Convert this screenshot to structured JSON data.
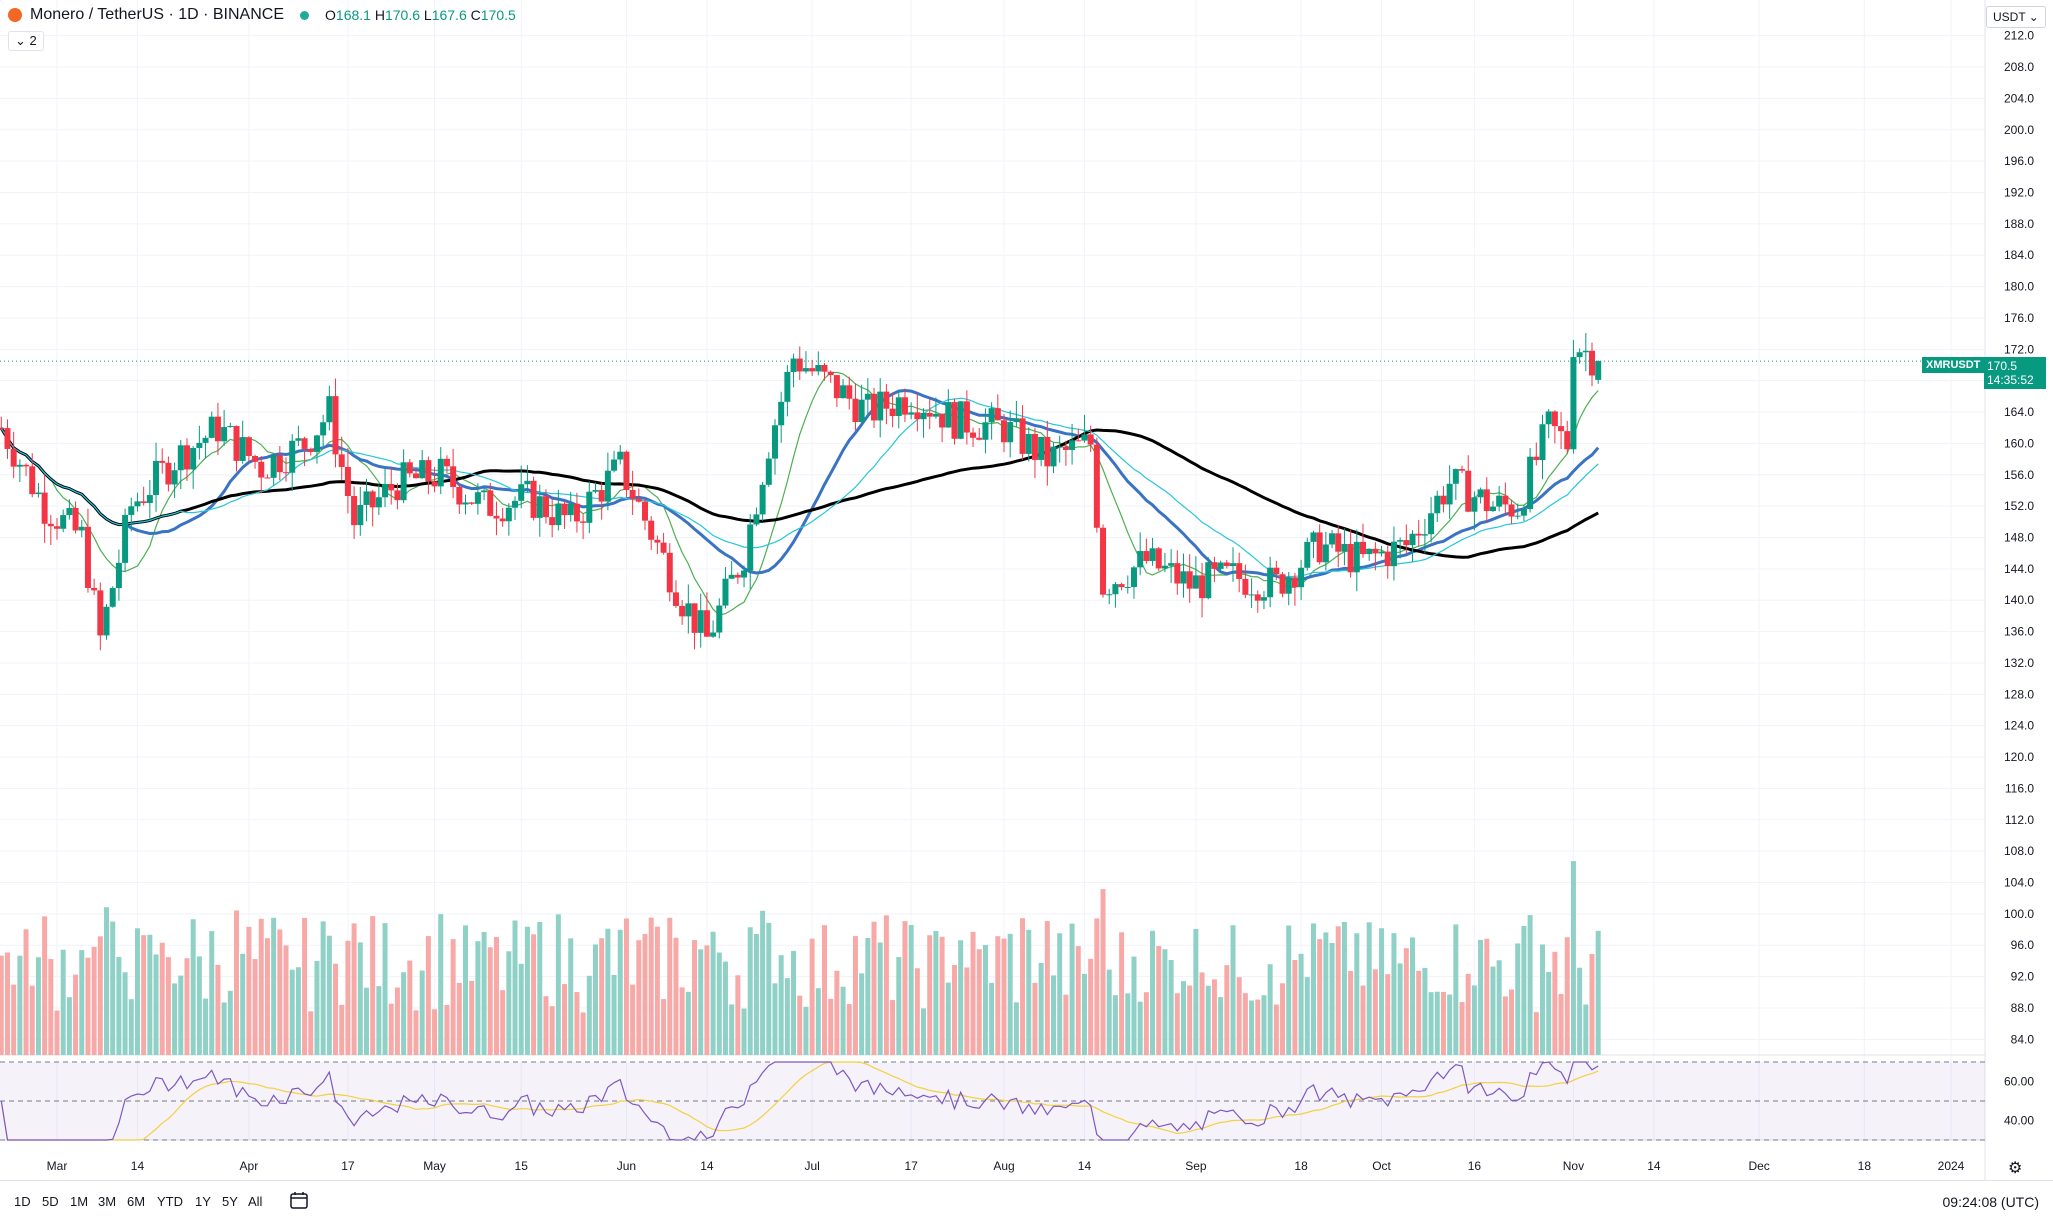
{
  "header": {
    "symbol": "Monero / TetherUS · 1D · BINANCE",
    "open_label": "O",
    "open": "168.1",
    "high_label": "H",
    "high": "170.6",
    "low_label": "L",
    "low": "167.6",
    "close_label": "C",
    "close": "170.5",
    "collapse": "⌄ 2"
  },
  "currency": "USDT ⌄",
  "last_price": {
    "symbol": "XMRUSDT",
    "price": "170.5",
    "countdown": "14:35:52"
  },
  "timeframes": [
    "1D",
    "5D",
    "1M",
    "3M",
    "6M",
    "YTD",
    "1Y",
    "5Y",
    "All"
  ],
  "clock": "09:24:08 (UTC)",
  "colors": {
    "up": "#089981",
    "down": "#f23645",
    "ma_fast": "#4caf50",
    "ma_mid": "#3a72c4",
    "ma_slow": "#000000",
    "ma_cyan": "#26c6da",
    "rsi": "#7e57c2",
    "rsi_ma": "#f4d03f"
  },
  "icons": {
    "calendar": "calendar-icon",
    "settings": "gear-icon"
  },
  "chart_data": {
    "type": "candlestick",
    "title": "Monero / TetherUS · 1D · BINANCE",
    "ylim": [
      82,
      214
    ],
    "y_ticks": [
      "212.0",
      "208.0",
      "204.0",
      "200.0",
      "196.0",
      "192.0",
      "188.0",
      "184.0",
      "180.0",
      "176.0",
      "172.0",
      "168.0",
      "164.0",
      "160.0",
      "156.0",
      "152.0",
      "148.0",
      "144.0",
      "140.0",
      "136.0",
      "132.0",
      "128.0",
      "124.0",
      "120.0",
      "116.0",
      "112.0",
      "108.0",
      "104.0",
      "100.0",
      "96.0",
      "92.0",
      "88.0",
      "84.0"
    ],
    "x_ticks": [
      "Mar",
      "14",
      "Apr",
      "17",
      "May",
      "15",
      "Jun",
      "14",
      "Jul",
      "17",
      "Aug",
      "14",
      "Sep",
      "18",
      "Oct",
      "16",
      "Nov",
      "14",
      "Dec",
      "18",
      "2024"
    ],
    "x_tick_dates": [
      "2023-03-01",
      "2023-03-14",
      "2023-04-01",
      "2023-04-17",
      "2023-05-01",
      "2023-05-15",
      "2023-06-01",
      "2023-06-14",
      "2023-07-01",
      "2023-07-17",
      "2023-08-01",
      "2023-08-14",
      "2023-09-01",
      "2023-09-18",
      "2023-10-01",
      "2023-10-16",
      "2023-11-01",
      "2023-11-14",
      "2023-12-01",
      "2023-12-18",
      "2024-01-01"
    ],
    "series_anchor_points": [
      [
        "2023-02-20",
        162
      ],
      [
        "2023-02-27",
        152
      ],
      [
        "2023-03-05",
        148
      ],
      [
        "2023-03-08",
        135
      ],
      [
        "2023-03-13",
        152
      ],
      [
        "2023-03-20",
        158
      ],
      [
        "2023-03-27",
        162
      ],
      [
        "2023-04-03",
        157
      ],
      [
        "2023-04-10",
        160
      ],
      [
        "2023-04-14",
        164
      ],
      [
        "2023-04-18",
        150
      ],
      [
        "2023-04-25",
        155
      ],
      [
        "2023-05-02",
        156
      ],
      [
        "2023-05-09",
        152
      ],
      [
        "2023-05-16",
        153
      ],
      [
        "2023-05-23",
        150
      ],
      [
        "2023-05-31",
        157
      ],
      [
        "2023-06-06",
        147
      ],
      [
        "2023-06-10",
        140
      ],
      [
        "2023-06-14",
        135
      ],
      [
        "2023-06-20",
        146
      ],
      [
        "2023-06-24",
        160
      ],
      [
        "2023-06-28",
        171
      ],
      [
        "2023-07-03",
        168
      ],
      [
        "2023-07-10",
        164
      ],
      [
        "2023-07-17",
        166
      ],
      [
        "2023-07-24",
        163
      ],
      [
        "2023-08-01",
        162
      ],
      [
        "2023-08-08",
        158
      ],
      [
        "2023-08-15",
        160
      ],
      [
        "2023-08-17",
        142
      ],
      [
        "2023-08-24",
        145
      ],
      [
        "2023-08-31",
        142
      ],
      [
        "2023-09-07",
        143
      ],
      [
        "2023-09-14",
        142
      ],
      [
        "2023-09-21",
        147
      ],
      [
        "2023-09-28",
        145
      ],
      [
        "2023-10-05",
        147
      ],
      [
        "2023-10-12",
        155
      ],
      [
        "2023-10-19",
        152
      ],
      [
        "2023-10-23",
        152
      ],
      [
        "2023-10-28",
        162
      ],
      [
        "2023-10-31",
        160
      ],
      [
        "2023-11-01",
        173
      ],
      [
        "2023-11-05",
        170.5
      ]
    ],
    "moving_averages": [
      {
        "name": "MA fast",
        "color": "#4caf50"
      },
      {
        "name": "MA mid",
        "color": "#3a72c4"
      },
      {
        "name": "MA slow",
        "color": "#000000"
      },
      {
        "name": "MA cyan",
        "color": "#26c6da"
      }
    ],
    "volume_pane": true,
    "rsi": {
      "ylim": [
        30,
        70
      ],
      "ticks": [
        "60.00",
        "40.00"
      ],
      "bands": [
        30,
        70
      ],
      "midline": 50
    },
    "last": {
      "open": 168.1,
      "high": 170.6,
      "low": 167.6,
      "close": 170.5
    }
  }
}
